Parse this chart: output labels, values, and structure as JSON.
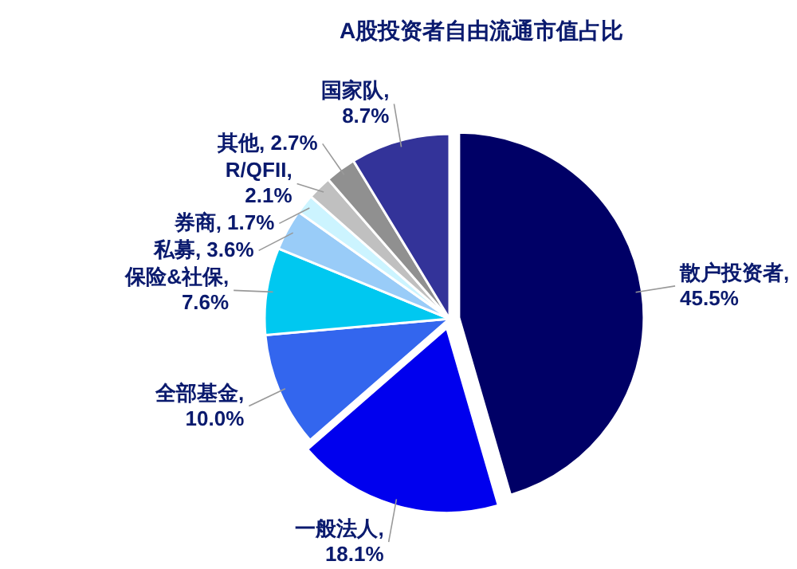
{
  "chart_data": {
    "type": "pie",
    "title": "A股投资者自由流通市值占比",
    "categories": [
      "散户投资者",
      "一般法人",
      "全部基金",
      "保险&社保",
      "私募",
      "券商",
      "R/QFII",
      "其他",
      "国家队"
    ],
    "values": [
      45.5,
      18.1,
      10.0,
      7.6,
      3.6,
      1.7,
      2.1,
      2.7,
      8.7
    ],
    "value_labels": [
      ", 45.5%",
      ", 18.1%",
      ", 10.0%",
      ", 7.6%",
      ", 3.6%",
      ", 1.7%",
      ", 2.1%",
      ", 2.7%",
      ", 8.7%"
    ],
    "colors": [
      "#000066",
      "#0000ee",
      "#3366ee",
      "#00c8f0",
      "#99ccf8",
      "#ccf4ff",
      "#c0c0c0",
      "#909090",
      "#333399"
    ]
  }
}
